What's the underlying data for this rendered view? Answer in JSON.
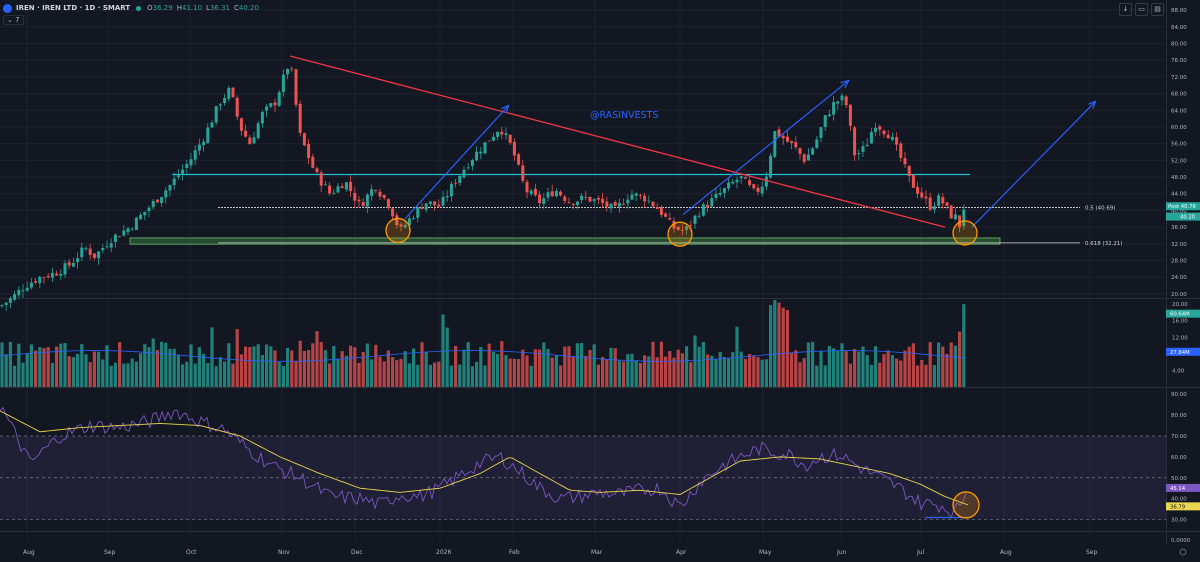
{
  "header": {
    "symbol": "IREN · IREN LTD · 1D · SMART",
    "o_label": "O",
    "o": "36.29",
    "h_label": "H",
    "h": "41.10",
    "l_label": "L",
    "l": "36.31",
    "c_label": "C",
    "c": "40.20",
    "indicator_toggle": "⌄ 7"
  },
  "tools": [
    "↓",
    "▭",
    "▤"
  ],
  "watermark": "@RASINVESTS",
  "chart_data": {
    "type": "candlestick",
    "x_ticks": [
      "Aug",
      "Sep",
      "Oct",
      "Nov",
      "Dec",
      "2026",
      "Feb",
      "Mar",
      "Apr",
      "May",
      "Jun",
      "Jul",
      "Aug",
      "Sep"
    ],
    "price_axis": {
      "ticks": [
        "88.00",
        "84.00",
        "80.00",
        "76.00",
        "72.00",
        "68.00",
        "64.00",
        "60.00",
        "56.00",
        "52.00",
        "48.00",
        "44.00",
        "40.00",
        "36.00",
        "32.00",
        "28.00",
        "24.00",
        "20.00"
      ],
      "range": [
        19,
        89
      ]
    },
    "price_anchors": [
      [
        0,
        17
      ],
      [
        12,
        19
      ],
      [
        25,
        22
      ],
      [
        40,
        24
      ],
      [
        55,
        25
      ],
      [
        70,
        27
      ],
      [
        85,
        31
      ],
      [
        95,
        29
      ],
      [
        110,
        33
      ],
      [
        130,
        36
      ],
      [
        150,
        41
      ],
      [
        170,
        46
      ],
      [
        190,
        52
      ],
      [
        205,
        58
      ],
      [
        220,
        66
      ],
      [
        230,
        69
      ],
      [
        240,
        60
      ],
      [
        250,
        56
      ],
      [
        262,
        63
      ],
      [
        275,
        66
      ],
      [
        290,
        76
      ],
      [
        300,
        58
      ],
      [
        315,
        49
      ],
      [
        330,
        44
      ],
      [
        345,
        47
      ],
      [
        360,
        41
      ],
      [
        375,
        46
      ],
      [
        390,
        41
      ],
      [
        400,
        35
      ],
      [
        410,
        38
      ],
      [
        425,
        42
      ],
      [
        440,
        41
      ],
      [
        455,
        47
      ],
      [
        470,
        52
      ],
      [
        485,
        56
      ],
      [
        500,
        60
      ],
      [
        512,
        55
      ],
      [
        525,
        45
      ],
      [
        540,
        42
      ],
      [
        555,
        45
      ],
      [
        570,
        42
      ],
      [
        585,
        43
      ],
      [
        600,
        42
      ],
      [
        615,
        40
      ],
      [
        630,
        44
      ],
      [
        645,
        43
      ],
      [
        660,
        40
      ],
      [
        672,
        36
      ],
      [
        685,
        35
      ],
      [
        700,
        40
      ],
      [
        710,
        42
      ],
      [
        725,
        45
      ],
      [
        740,
        48
      ],
      [
        755,
        44
      ],
      [
        765,
        47
      ],
      [
        775,
        59
      ],
      [
        785,
        57
      ],
      [
        795,
        55
      ],
      [
        805,
        52
      ],
      [
        815,
        56
      ],
      [
        825,
        62
      ],
      [
        835,
        66
      ],
      [
        845,
        67
      ],
      [
        855,
        53
      ],
      [
        865,
        55
      ],
      [
        875,
        61
      ],
      [
        890,
        58
      ],
      [
        900,
        53
      ],
      [
        910,
        47
      ],
      [
        920,
        44
      ],
      [
        930,
        41
      ],
      [
        940,
        43
      ],
      [
        950,
        39
      ],
      [
        958,
        38
      ],
      [
        962,
        34
      ],
      [
        968,
        40
      ]
    ],
    "ohlc_last": {
      "open": 36.29,
      "high": 41.1,
      "low": 36.31,
      "close": 40.2
    },
    "horizontal_lines": [
      {
        "price": 48.6,
        "label": ""
      },
      {
        "price": 40.69,
        "label": "0.5 (40.69)"
      },
      {
        "price": 32.21,
        "label": "0.618 (32.21)"
      }
    ],
    "support_zone": {
      "from": 31.9,
      "to": 33.4
    },
    "trendline": {
      "from": {
        "x": 290,
        "price": 77
      },
      "to": {
        "x": 945,
        "price": 36
      }
    },
    "arrows": [
      {
        "from": [
          405,
          38
        ],
        "to": [
          508,
          65
        ]
      },
      {
        "from": [
          683,
          39
        ],
        "to": [
          848,
          71
        ]
      },
      {
        "from": [
          972,
          36
        ],
        "to": [
          1095,
          66
        ]
      }
    ],
    "circles": [
      {
        "x": 398,
        "price": 35.2
      },
      {
        "x": 680,
        "price": 34.3
      },
      {
        "x": 965,
        "price": 34.6
      }
    ],
    "badges": {
      "price_post_label": "Post",
      "price_post": "40.76",
      "price_last": "40.20",
      "volume_1": "60.64M",
      "volume_2": "27.84M",
      "rsi_1": "45.14",
      "rsi_2": "36.79"
    },
    "volume_axis": {
      "ticks": [
        "20.00",
        "16.00",
        "12.00",
        "8.00",
        "4.00"
      ],
      "range": [
        0,
        21
      ]
    },
    "rsi_axis": {
      "ticks": [
        "90.00",
        "80.00",
        "70.00",
        "60.00",
        "50.00",
        "40.00",
        "30.00"
      ],
      "range": [
        25,
        92
      ],
      "band": [
        30,
        70
      ]
    },
    "rsi_anchors": [
      [
        0,
        85
      ],
      [
        30,
        57
      ],
      [
        60,
        70
      ],
      [
        90,
        75
      ],
      [
        120,
        74
      ],
      [
        150,
        77
      ],
      [
        175,
        82
      ],
      [
        200,
        77
      ],
      [
        225,
        73
      ],
      [
        250,
        63
      ],
      [
        275,
        55
      ],
      [
        300,
        50
      ],
      [
        330,
        41
      ],
      [
        360,
        40
      ],
      [
        380,
        37
      ],
      [
        400,
        42
      ],
      [
        420,
        41
      ],
      [
        440,
        45
      ],
      [
        460,
        51
      ],
      [
        480,
        57
      ],
      [
        500,
        60
      ],
      [
        520,
        53
      ],
      [
        540,
        45
      ],
      [
        560,
        40
      ],
      [
        580,
        41
      ],
      [
        600,
        43
      ],
      [
        620,
        42
      ],
      [
        640,
        44
      ],
      [
        660,
        45
      ],
      [
        680,
        36
      ],
      [
        700,
        48
      ],
      [
        720,
        55
      ],
      [
        740,
        60
      ],
      [
        760,
        64
      ],
      [
        775,
        62
      ],
      [
        790,
        61
      ],
      [
        805,
        56
      ],
      [
        820,
        60
      ],
      [
        840,
        61
      ],
      [
        860,
        55
      ],
      [
        880,
        50
      ],
      [
        900,
        45
      ],
      [
        920,
        38
      ],
      [
        940,
        37
      ],
      [
        955,
        33
      ],
      [
        968,
        45
      ]
    ],
    "rsi_ma_anchors": [
      [
        0,
        82
      ],
      [
        40,
        72
      ],
      [
        80,
        74
      ],
      [
        120,
        75
      ],
      [
        160,
        76
      ],
      [
        200,
        75
      ],
      [
        240,
        70
      ],
      [
        280,
        60
      ],
      [
        320,
        52
      ],
      [
        360,
        45
      ],
      [
        400,
        43
      ],
      [
        440,
        45
      ],
      [
        480,
        52
      ],
      [
        510,
        60
      ],
      [
        540,
        52
      ],
      [
        570,
        44
      ],
      [
        600,
        43
      ],
      [
        640,
        44
      ],
      [
        680,
        42
      ],
      [
        710,
        50
      ],
      [
        740,
        58
      ],
      [
        780,
        60
      ],
      [
        820,
        59
      ],
      [
        860,
        55
      ],
      [
        890,
        52
      ],
      [
        920,
        47
      ],
      [
        945,
        41
      ],
      [
        968,
        37
      ]
    ],
    "rsi_horizontal": {
      "value": 31,
      "from_x": 925,
      "to_x": 968
    },
    "bottom_axis_value": "0.0000"
  }
}
